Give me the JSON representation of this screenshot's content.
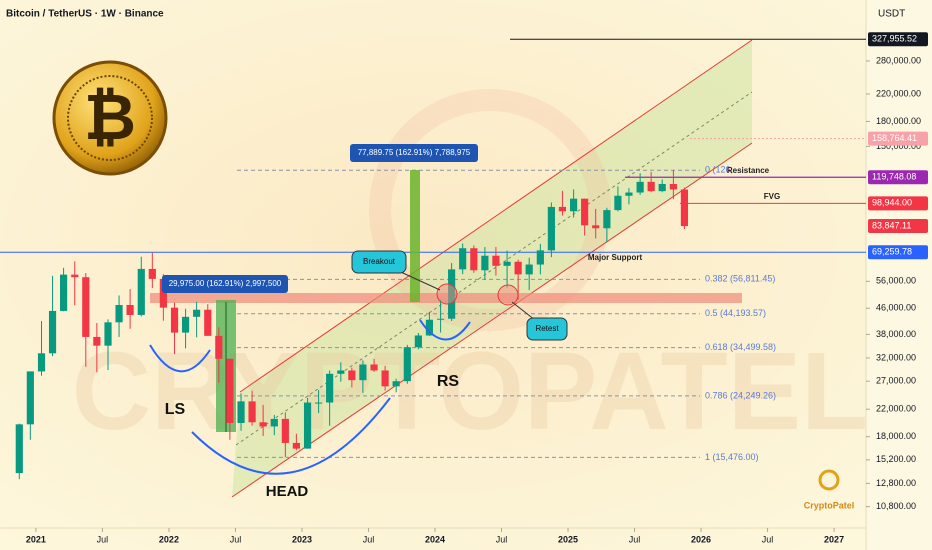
{
  "header": {
    "title": "Bitcoin / TetherUS · 1W · Binance",
    "currency": "USDT"
  },
  "chart_data": {
    "type": "candlestick",
    "log_scale": true,
    "xlim": [
      2020.73,
      2027.24
    ],
    "ylim": [
      9240,
      437000
    ],
    "xticks": [
      2021,
      {
        "value": 2021.5,
        "label": "Jul"
      },
      2022,
      {
        "value": 2022.5,
        "label": "Jul"
      },
      2023,
      {
        "value": 2023.5,
        "label": "Jul"
      },
      2024,
      {
        "value": 2024.5,
        "label": "Jul"
      },
      2025,
      {
        "value": 2025.5,
        "label": "Jul"
      },
      2026,
      {
        "value": 2026.5,
        "label": "Jul"
      },
      2027
    ],
    "yticks": [
      {
        "value": 280000,
        "label": "280,000.00"
      },
      {
        "value": 220000,
        "label": "220,000.00"
      },
      {
        "value": 180000,
        "label": "180,000.00"
      },
      {
        "value": 150000,
        "label": "150,000.00"
      },
      {
        "value": 56000,
        "label": "56,000.00"
      },
      {
        "value": 46000,
        "label": "46,000.00"
      },
      {
        "value": 38000,
        "label": "38,000.00"
      },
      {
        "value": 32000,
        "label": "32,000.00"
      },
      {
        "value": 27000,
        "label": "27,000.00"
      },
      {
        "value": 22000,
        "label": "22,000.00"
      },
      {
        "value": 18000,
        "label": "18,000.00"
      },
      {
        "value": 15200,
        "label": "15,200.00"
      },
      {
        "value": 12800,
        "label": "12,800.00"
      },
      {
        "value": 10800,
        "label": "10,800.00"
      }
    ],
    "x": [
      2020.875,
      2020.958,
      2021.042,
      2021.125,
      2021.208,
      2021.292,
      2021.375,
      2021.458,
      2021.542,
      2021.625,
      2021.708,
      2021.792,
      2021.875,
      2021.958,
      2022.042,
      2022.125,
      2022.208,
      2022.292,
      2022.375,
      2022.458,
      2022.542,
      2022.625,
      2022.708,
      2022.792,
      2022.875,
      2022.958,
      2023.042,
      2023.125,
      2023.208,
      2023.292,
      2023.375,
      2023.458,
      2023.542,
      2023.625,
      2023.708,
      2023.792,
      2023.875,
      2023.958,
      2024.042,
      2024.125,
      2024.208,
      2024.292,
      2024.375,
      2024.458,
      2024.542,
      2024.625,
      2024.708,
      2024.792,
      2024.875,
      2024.958,
      2025.042,
      2025.125,
      2025.208,
      2025.292,
      2025.375,
      2025.458,
      2025.542,
      2025.625,
      2025.708,
      2025.792,
      2025.875
    ],
    "open": [
      13800,
      19700,
      29000,
      33100,
      45100,
      58800,
      57700,
      37300,
      35000,
      41500,
      47100,
      43800,
      61300,
      57000,
      46200,
      38500,
      43200,
      45500,
      37600,
      31800,
      19900,
      23300,
      20000,
      19400,
      20500,
      17200,
      16500,
      23100,
      23100,
      28500,
      29200,
      27200,
      30500,
      29200,
      26000,
      27000,
      34600,
      37700,
      42300,
      42600,
      61100,
      71300,
      60700,
      67500,
      62700,
      64600,
      58900,
      63300,
      70200,
      96400,
      93400,
      102400,
      84300,
      82500,
      94200,
      104600,
      107100,
      115800,
      108200,
      114000,
      109500
    ],
    "high": [
      19800,
      29000,
      41900,
      58300,
      61800,
      64800,
      59500,
      41300,
      42400,
      50500,
      52900,
      67000,
      69000,
      59000,
      47900,
      45800,
      48200,
      47400,
      40000,
      31900,
      24700,
      25200,
      22700,
      21100,
      21500,
      18400,
      23900,
      25300,
      29200,
      31000,
      29800,
      31400,
      31800,
      30200,
      27500,
      35200,
      38400,
      44700,
      48900,
      64000,
      73800,
      72800,
      71900,
      72000,
      70100,
      65600,
      66500,
      73600,
      99600,
      108400,
      109600,
      102500,
      95000,
      95800,
      112000,
      110600,
      123200,
      124500,
      117900,
      126200,
      111000
    ],
    "low": [
      13200,
      17600,
      28100,
      32400,
      45000,
      47000,
      30000,
      28800,
      29300,
      37300,
      39600,
      43300,
      53300,
      42000,
      32900,
      34300,
      37200,
      37600,
      26700,
      17600,
      18800,
      19500,
      18100,
      18200,
      15500,
      16300,
      16500,
      21400,
      19500,
      26900,
      25800,
      24800,
      28900,
      25200,
      24900,
      26500,
      34100,
      37600,
      38500,
      41900,
      59000,
      59600,
      56600,
      58400,
      53500,
      49000,
      52500,
      58900,
      66800,
      90500,
      89200,
      78200,
      76600,
      74400,
      93300,
      98200,
      105300,
      107300,
      107300,
      102000,
      82000
    ],
    "close": [
      19700,
      29000,
      33100,
      45100,
      58800,
      57700,
      37300,
      35000,
      41500,
      47100,
      43800,
      61300,
      57000,
      46200,
      38500,
      43200,
      45500,
      37600,
      31800,
      19900,
      23300,
      20000,
      19400,
      20500,
      17200,
      16500,
      23100,
      23100,
      28500,
      29200,
      27200,
      30500,
      29200,
      26000,
      27000,
      34600,
      37700,
      42300,
      42600,
      61100,
      71300,
      60700,
      67500,
      62700,
      64600,
      58900,
      63300,
      70200,
      96400,
      93400,
      102400,
      84300,
      82500,
      94200,
      104600,
      107100,
      115800,
      108200,
      114000,
      109500,
      83847.11
    ],
    "up_color": "#089981",
    "down_color": "#f23645",
    "price_tags": [
      {
        "value": 327955.52,
        "label": "327,955.52",
        "color": "#131722"
      },
      {
        "value": 158764.41,
        "label": "158,764.41",
        "color": "#f7a1a8"
      },
      {
        "value": 119748.08,
        "label": "119,748.08",
        "color": "#9c27b0"
      },
      {
        "value": 98944,
        "label": "98,944.00",
        "color": "#f23645"
      },
      {
        "value": 83847.11,
        "label": "83,847.11",
        "color": "#f23645"
      },
      {
        "value": 69259.78,
        "label": "69,259.78",
        "color": "#2962ff"
      }
    ],
    "fib_levels": [
      {
        "value": 126000,
        "label": "0 (126,"
      },
      {
        "value": 56811.45,
        "label": "0.382 (56,811.45)"
      },
      {
        "value": 44193.57,
        "label": "0.5 (44,193.57)"
      },
      {
        "value": 34499.58,
        "label": "0.618 (34,499.58)"
      },
      {
        "value": 24249.26,
        "label": "0.786 (24,249.26)"
      },
      {
        "value": 15476,
        "label": "1 (15,476.00)"
      }
    ],
    "annotations": {
      "measure_top": "77,889.75 (162.91%) 7,788,975",
      "measure_left": "29,975.00 (162.91%) 2,997,500",
      "breakout": "Breakout",
      "retest": "Retest",
      "major_support": "Major Support",
      "resistance": "Resistance",
      "fvg": "FVG",
      "ls": "LS",
      "head": "HEAD",
      "rs": "RS"
    },
    "watermark": "CRYPTOPATEL",
    "brand": "CryptoPatel",
    "coin_symbol": "₿"
  }
}
